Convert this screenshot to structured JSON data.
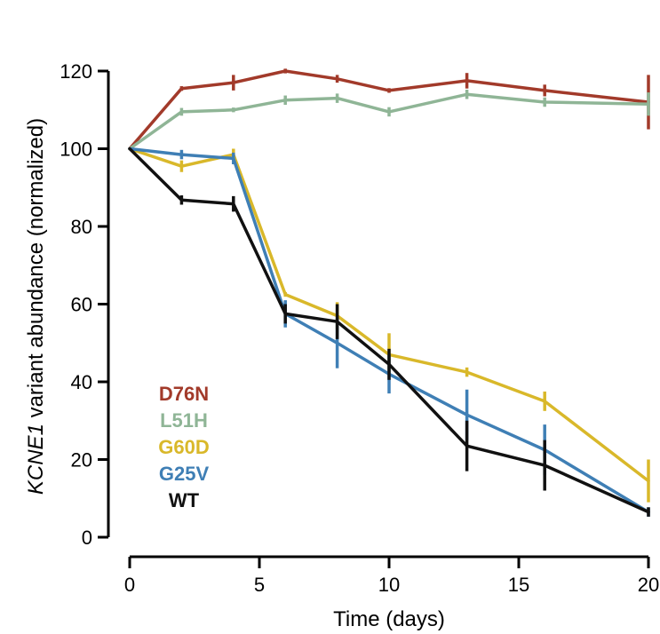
{
  "chart_data": {
    "type": "line",
    "title": "",
    "xlabel": "Time (days)",
    "ylabel_italic": "KCNE1",
    "ylabel_rest": " variant  abundance (normalized)",
    "xlim": [
      0,
      20
    ],
    "ylim": [
      0,
      120
    ],
    "xticks": [
      0,
      5,
      10,
      15,
      20
    ],
    "yticks": [
      0,
      20,
      40,
      60,
      80,
      100,
      120
    ],
    "grid": false,
    "legend_position": "lower-left",
    "series": [
      {
        "name": "D76N",
        "color": "#a23a2a",
        "x": [
          0,
          2,
          4,
          6,
          8,
          10,
          13,
          16,
          20
        ],
        "y": [
          100,
          115.5,
          117,
          120,
          118,
          115,
          117.5,
          115,
          112
        ],
        "err": [
          0,
          0.6,
          2,
          0.6,
          1,
          0.6,
          2,
          1.5,
          7
        ]
      },
      {
        "name": "L51H",
        "color": "#8fb596",
        "x": [
          0,
          2,
          4,
          6,
          8,
          10,
          13,
          16,
          20
        ],
        "y": [
          100,
          109.5,
          110,
          112.5,
          113,
          109.5,
          114,
          112,
          111.5
        ],
        "err": [
          0,
          1,
          0.6,
          1.2,
          1.2,
          1.2,
          1.2,
          1.2,
          3
        ]
      },
      {
        "name": "G60D",
        "color": "#d9b82a",
        "x": [
          0,
          2,
          4,
          6,
          8,
          10,
          13,
          16,
          20
        ],
        "y": [
          100,
          95.5,
          98.5,
          62.5,
          57,
          47,
          42.5,
          35,
          14.5
        ],
        "err": [
          0,
          1.5,
          1.5,
          0.6,
          3.5,
          5.5,
          1.2,
          2.5,
          5.5
        ]
      },
      {
        "name": "G25V",
        "color": "#3f7fb5",
        "x": [
          0,
          2,
          4,
          6,
          8,
          10,
          13,
          16,
          20
        ],
        "y": [
          100,
          98.5,
          97.5,
          57.5,
          50,
          42,
          31.5,
          22.5,
          6.5
        ],
        "err": [
          0,
          1.2,
          1.5,
          3.5,
          6.5,
          5,
          6.5,
          6.5,
          1.2
        ]
      },
      {
        "name": "WT",
        "color": "#111111",
        "x": [
          0,
          2,
          4,
          6,
          8,
          10,
          13,
          16,
          20
        ],
        "y": [
          100,
          86.8,
          85.8,
          57.5,
          55.5,
          44.5,
          23.5,
          18.5,
          6.5
        ],
        "err": [
          0,
          1.2,
          2,
          2.5,
          4.5,
          4,
          6.5,
          6.5,
          1.2
        ]
      }
    ]
  }
}
